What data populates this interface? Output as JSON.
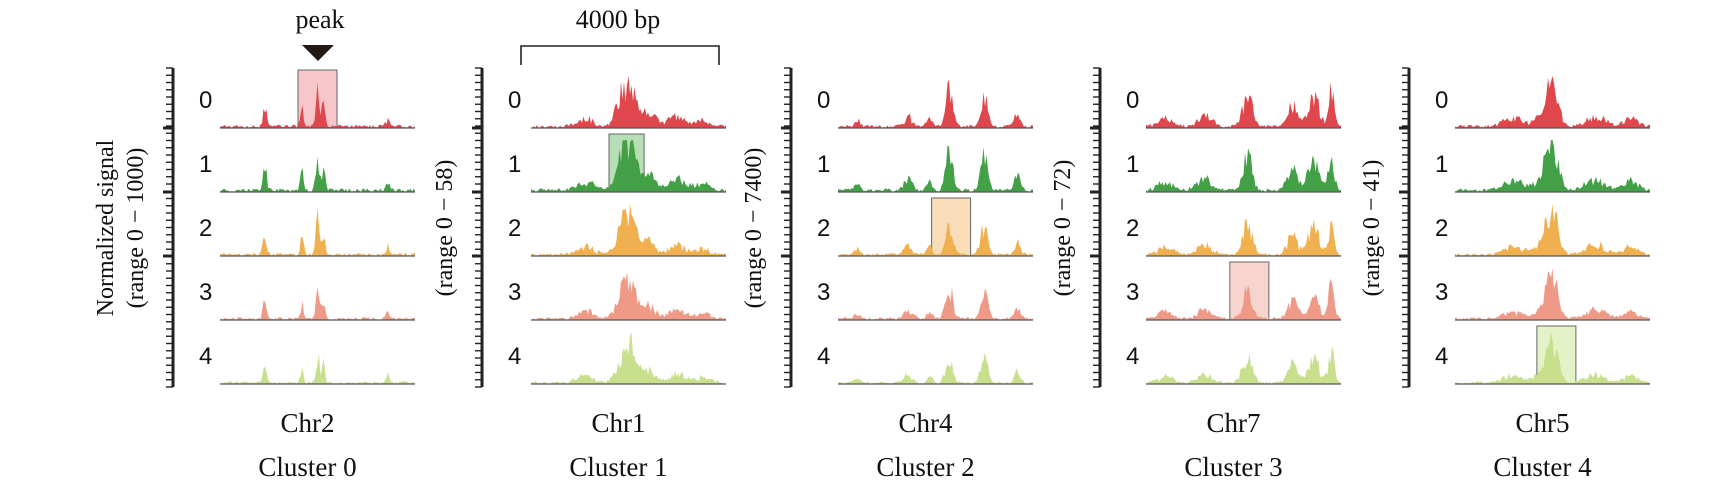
{
  "annotations": {
    "peak_label": "peak",
    "scale_label": "4000 bp"
  },
  "colors": {
    "track_0": "#e0474c",
    "track_1": "#43a047",
    "track_2": "#f0b04f",
    "track_3": "#ef9a86",
    "track_4": "#c8df8e",
    "highlight_0": "#f3b3b9",
    "highlight_1": "#9fd39f",
    "highlight_2": "#f6d2a0",
    "highlight_3": "#f6c5bd",
    "highlight_4": "#dbeeb5",
    "axis": "#222222",
    "baseline": "#555555",
    "peak_marker": "#231815"
  },
  "chart_data": [
    {
      "type": "area",
      "chromosome": "Chr2",
      "cluster": "Cluster 0",
      "ylabel_lines": [
        "Normalized signal",
        "(range 0 − 1000)"
      ],
      "tracks": [
        "0",
        "1",
        "2",
        "3",
        "4"
      ],
      "highlight": {
        "track": 0,
        "x_range": [
          0.4,
          0.6
        ]
      },
      "peak_marker_x": 0.5,
      "signal_peaks": [
        [
          0.23,
          0.45,
          0.014
        ],
        [
          0.42,
          0.4,
          0.012
        ],
        [
          0.5,
          0.9,
          0.012
        ],
        [
          0.53,
          0.55,
          0.012
        ],
        [
          0.86,
          0.22,
          0.012
        ]
      ]
    },
    {
      "type": "area",
      "chromosome": "Chr1",
      "cluster": "Cluster 1",
      "ylabel_lines": [
        "(range 0 − 58)"
      ],
      "tracks": [
        "0",
        "1",
        "2",
        "3",
        "4"
      ],
      "highlight": {
        "track": 1,
        "x_range": [
          0.4,
          0.58
        ]
      },
      "scale_bar": true,
      "signal_peaks": [
        [
          0.48,
          0.85,
          0.05
        ],
        [
          0.52,
          0.55,
          0.04
        ],
        [
          0.6,
          0.35,
          0.05
        ],
        [
          0.28,
          0.2,
          0.06
        ],
        [
          0.75,
          0.25,
          0.06
        ],
        [
          0.88,
          0.15,
          0.05
        ]
      ]
    },
    {
      "type": "area",
      "chromosome": "Chr4",
      "cluster": "Cluster 2",
      "ylabel_lines": [
        "(range 0 − 7400)"
      ],
      "tracks": [
        "0",
        "1",
        "2",
        "3",
        "4"
      ],
      "highlight": {
        "track": 2,
        "x_range": [
          0.48,
          0.68
        ]
      },
      "signal_peaks": [
        [
          0.57,
          0.85,
          0.025
        ],
        [
          0.75,
          0.7,
          0.025
        ],
        [
          0.36,
          0.25,
          0.03
        ],
        [
          0.92,
          0.35,
          0.02
        ],
        [
          0.1,
          0.15,
          0.02
        ],
        [
          0.47,
          0.2,
          0.02
        ]
      ]
    },
    {
      "type": "area",
      "chromosome": "Chr7",
      "cluster": "Cluster 3",
      "ylabel_lines": [
        "(range 0 − 72)"
      ],
      "tracks": [
        "0",
        "1",
        "2",
        "3",
        "4"
      ],
      "highlight": {
        "track": 3,
        "x_range": [
          0.43,
          0.63
        ]
      },
      "signal_peaks": [
        [
          0.52,
          0.75,
          0.035
        ],
        [
          0.75,
          0.5,
          0.035
        ],
        [
          0.86,
          0.7,
          0.04
        ],
        [
          0.95,
          0.9,
          0.02
        ],
        [
          0.3,
          0.25,
          0.05
        ],
        [
          0.1,
          0.2,
          0.05
        ]
      ]
    },
    {
      "type": "area",
      "chromosome": "Chr5",
      "cluster": "Cluster 4",
      "ylabel_lines": [
        "(range 0 − 41)"
      ],
      "tracks": [
        "0",
        "1",
        "2",
        "3",
        "4"
      ],
      "highlight": {
        "track": 4,
        "x_range": [
          0.42,
          0.62
        ]
      },
      "signal_peaks": [
        [
          0.5,
          0.85,
          0.04
        ],
        [
          0.47,
          0.4,
          0.06
        ],
        [
          0.3,
          0.2,
          0.07
        ],
        [
          0.72,
          0.25,
          0.07
        ],
        [
          0.9,
          0.2,
          0.05
        ]
      ]
    }
  ]
}
